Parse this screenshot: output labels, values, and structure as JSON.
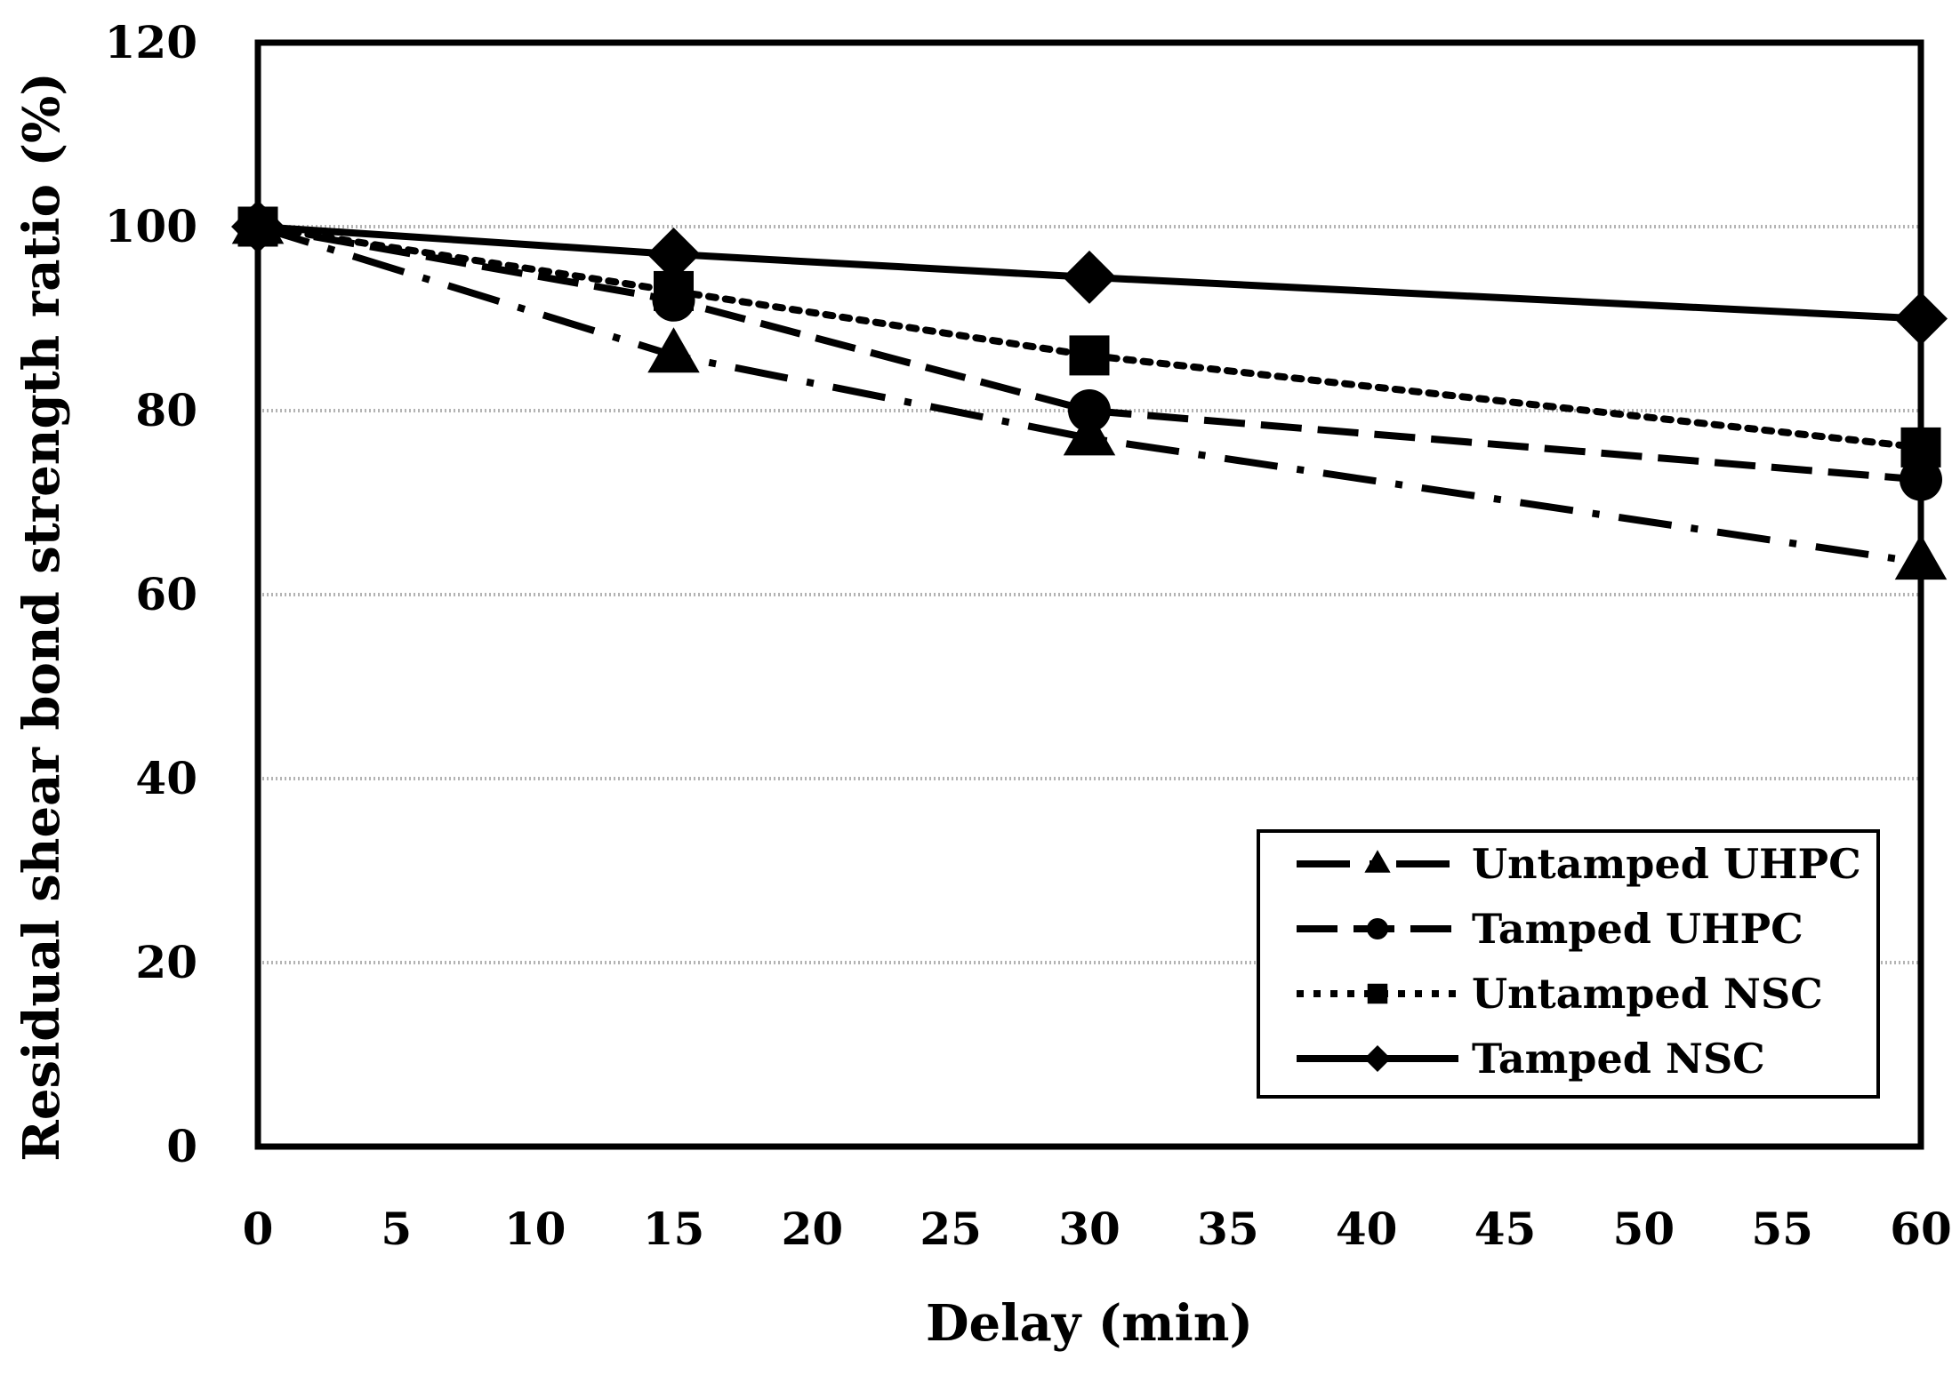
{
  "chart_data": {
    "type": "line",
    "title": "",
    "xlabel": "Delay (min)",
    "ylabel": "Residual shear bond strength ratio (%)",
    "xlim": [
      0,
      60
    ],
    "ylim": [
      0,
      120
    ],
    "x_ticks": [
      0,
      5,
      10,
      15,
      20,
      25,
      30,
      35,
      40,
      45,
      50,
      55,
      60
    ],
    "y_ticks": [
      0,
      20,
      40,
      60,
      80,
      100,
      120
    ],
    "gridlines": [
      20,
      40,
      60,
      80,
      100
    ],
    "legend_position": "bottom-right",
    "series": [
      {
        "name": "Untamped UHPC",
        "marker": "triangle",
        "dash": "dash-dot",
        "x": [
          0,
          15,
          30,
          60
        ],
        "values": [
          100,
          86,
          77,
          63.5
        ]
      },
      {
        "name": "Tamped UHPC",
        "marker": "circle",
        "dash": "dashed",
        "x": [
          0,
          15,
          30,
          60
        ],
        "values": [
          100,
          92,
          80,
          72.5
        ]
      },
      {
        "name": "Untamped NSC",
        "marker": "square",
        "dash": "dotted",
        "x": [
          0,
          15,
          30,
          60
        ],
        "values": [
          100,
          93,
          86,
          76
        ]
      },
      {
        "name": "Tamped NSC",
        "marker": "diamond",
        "dash": "solid",
        "x": [
          0,
          15,
          30,
          60
        ],
        "values": [
          100,
          97,
          94.5,
          90
        ]
      }
    ]
  }
}
